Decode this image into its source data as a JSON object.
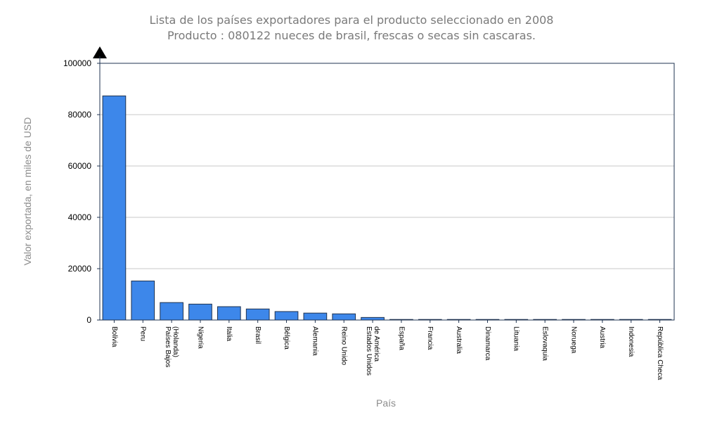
{
  "colors": {
    "bar_fill": "#3d87ea",
    "bar_stroke": "#1f3350",
    "gridline": "#c8c8c8",
    "axis": "#1f3350",
    "title_text": "#7a7a7a",
    "axis_title_text": "#8c8c8c"
  },
  "chart_data": {
    "type": "bar",
    "title_lines": [
      "Lista de los países exportadores para el producto seleccionado en 2008",
      "Producto : 080122 nueces de brasil, frescas o secas sin cascaras."
    ],
    "xlabel": "País",
    "ylabel": "Valor exportada, en miles de USD",
    "ylim": [
      0,
      100000
    ],
    "yticks": [
      "0",
      "20000",
      "40000",
      "60000",
      "80000",
      "100000"
    ],
    "grid": "horizontal",
    "categories": [
      [
        "Bolivia"
      ],
      [
        "Peru"
      ],
      [
        "Países Bajos",
        "(Holanda)"
      ],
      [
        "Nigeria"
      ],
      [
        "Italia"
      ],
      [
        "Brasil"
      ],
      [
        "Bélgica"
      ],
      [
        "Alemania"
      ],
      [
        "Reino Unido"
      ],
      [
        "Estados Unidos",
        "de América"
      ],
      [
        "España"
      ],
      [
        "Francia"
      ],
      [
        "Australia"
      ],
      [
        "Dinamarca"
      ],
      [
        "Lituania"
      ],
      [
        "Eslovaquia"
      ],
      [
        "Noruega"
      ],
      [
        "Austria"
      ],
      [
        "Indonesia"
      ],
      [
        "República Checa"
      ]
    ],
    "values": [
      87300,
      15200,
      6800,
      6200,
      5200,
      4300,
      3300,
      2700,
      2400,
      1000,
      200,
      150,
      120,
      100,
      100,
      80,
      70,
      60,
      50,
      40
    ]
  }
}
